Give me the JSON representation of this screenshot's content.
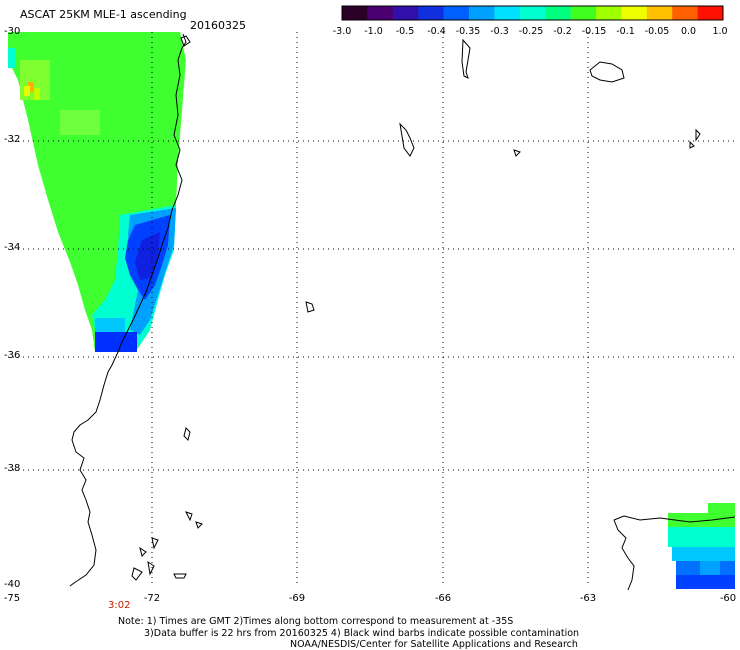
{
  "header": {
    "title": "ASCAT 25KM MLE-1 ascending",
    "date": "20160325"
  },
  "colorbar": {
    "tick_labels": [
      "-3.0",
      "-1.0",
      "-0.5",
      "-0.4",
      "-0.35",
      "-0.3",
      "-0.25",
      "-0.2",
      "-0.15",
      "-0.1",
      "-0.05",
      "0.0",
      "1.0"
    ],
    "colors": [
      "#2a0028",
      "#4a0070",
      "#3010a8",
      "#1030e0",
      "#0060ff",
      "#00a0ff",
      "#00e0ff",
      "#00ffd0",
      "#00ff80",
      "#40ff20",
      "#a0ff00",
      "#f0ff00",
      "#ffc000",
      "#ff6000",
      "#ff1000"
    ]
  },
  "axes": {
    "lat_labels": [
      "-30",
      "-32",
      "-34",
      "-36",
      "-38",
      "-40"
    ],
    "lon_labels": [
      "-75",
      "-72",
      "-69",
      "-66",
      "-63",
      "-60"
    ]
  },
  "time_label": "3:02",
  "notes": {
    "line1": "Note: 1) Times are GMT 2)Times along bottom correspond to measurement at -35S",
    "line2": "3)Data buffer is 22 hrs from 20160325 4) Black wind barbs indicate possible contamination",
    "line3": "NOAA/NESDIS/Center for Satellite Applications and Research"
  }
}
